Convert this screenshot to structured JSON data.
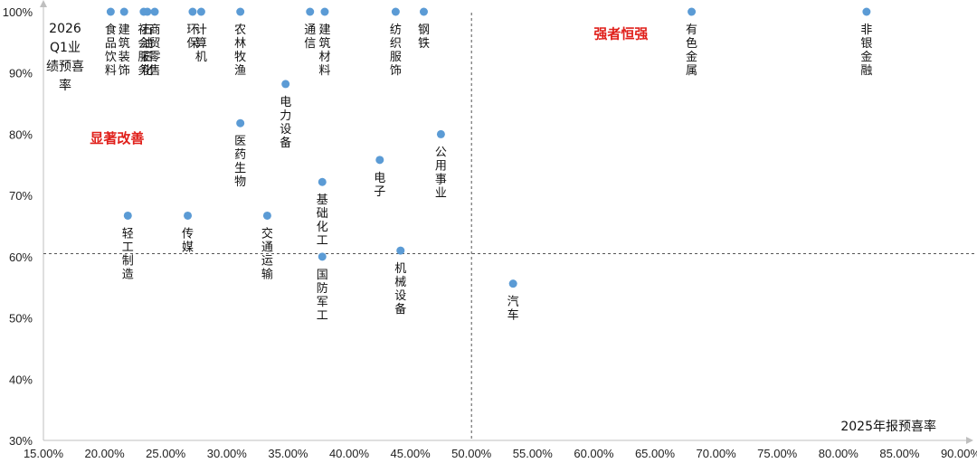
{
  "chart_data": {
    "type": "scatter",
    "xlabel": "2025年报预喜率",
    "ylabel": "2026Q1业绩预喜率",
    "xlim": [
      0.15,
      0.9
    ],
    "ylim": [
      0.3,
      1.0
    ],
    "x_ticks": [
      "15.00%",
      "20.00%",
      "25.00%",
      "30.00%",
      "35.00%",
      "40.00%",
      "45.00%",
      "50.00%",
      "55.00%",
      "60.00%",
      "65.00%",
      "70.00%",
      "75.00%",
      "80.00%",
      "85.00%",
      "90.00%"
    ],
    "y_ticks": [
      "30%",
      "40%",
      "50%",
      "60%",
      "70%",
      "80%",
      "90%",
      "100%"
    ],
    "reference_lines": {
      "x": 0.5,
      "y": 0.605
    },
    "quadrant_labels": [
      {
        "text": "强者恒强",
        "x": 0.6,
        "y": 0.965,
        "color": "#e0201b"
      },
      {
        "text": "显著改善",
        "x": 0.188,
        "y": 0.795,
        "color": "#e0201b"
      }
    ],
    "marker_color": "#5b9bd5",
    "points": [
      {
        "name": "食品饮料",
        "x": 0.205,
        "y": 1.0
      },
      {
        "name": "建筑装饰",
        "x": 0.216,
        "y": 1.0
      },
      {
        "name": "社会服务",
        "x": 0.232,
        "y": 1.0
      },
      {
        "name": "石油石化",
        "x": 0.235,
        "y": 1.0
      },
      {
        "name": "商贸零售",
        "x": 0.241,
        "y": 1.0
      },
      {
        "name": "环保",
        "x": 0.272,
        "y": 1.0
      },
      {
        "name": "计算机",
        "x": 0.279,
        "y": 1.0
      },
      {
        "name": "农林牧渔",
        "x": 0.311,
        "y": 1.0
      },
      {
        "name": "通信",
        "x": 0.368,
        "y": 1.0
      },
      {
        "name": "建筑材料",
        "x": 0.38,
        "y": 1.0
      },
      {
        "name": "纺织服饰",
        "x": 0.438,
        "y": 1.0
      },
      {
        "name": "钢铁",
        "x": 0.461,
        "y": 1.0
      },
      {
        "name": "有色金属",
        "x": 0.68,
        "y": 1.0
      },
      {
        "name": "非银金融",
        "x": 0.823,
        "y": 1.0
      },
      {
        "name": "电力设备",
        "x": 0.348,
        "y": 0.882
      },
      {
        "name": "医药生物",
        "x": 0.311,
        "y": 0.818
      },
      {
        "name": "公用事业",
        "x": 0.475,
        "y": 0.8
      },
      {
        "name": "电子",
        "x": 0.425,
        "y": 0.758
      },
      {
        "name": "基础化工",
        "x": 0.378,
        "y": 0.722
      },
      {
        "name": "轻工制造",
        "x": 0.219,
        "y": 0.667
      },
      {
        "name": "传媒",
        "x": 0.268,
        "y": 0.667
      },
      {
        "name": "交通运输",
        "x": 0.333,
        "y": 0.667
      },
      {
        "name": "机械设备",
        "x": 0.442,
        "y": 0.61
      },
      {
        "name": "国防军工",
        "x": 0.378,
        "y": 0.6
      },
      {
        "name": "汽车",
        "x": 0.534,
        "y": 0.556
      }
    ]
  }
}
